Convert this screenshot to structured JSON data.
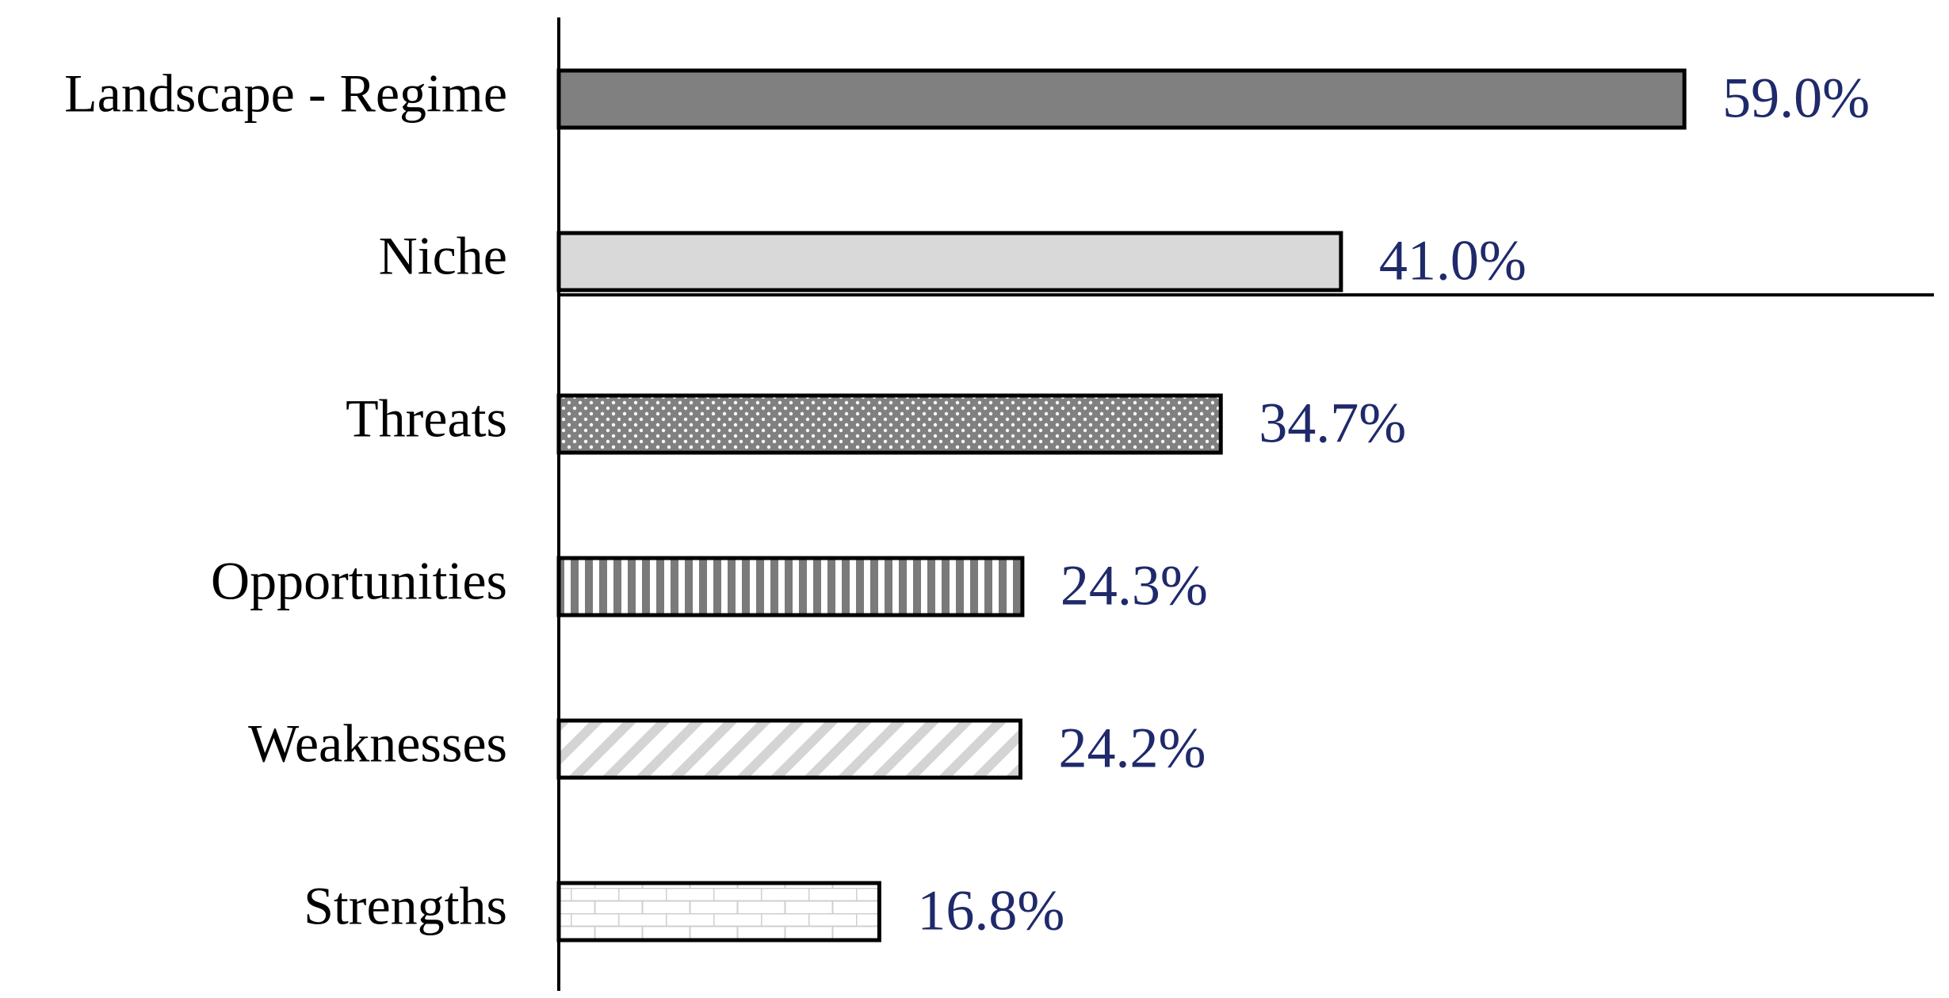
{
  "chart_data": {
    "type": "bar",
    "orientation": "horizontal",
    "categories": [
      "Landscape - Regime",
      "Niche",
      "Threats",
      "Opportunities",
      "Weaknesses",
      "Strengths"
    ],
    "values": [
      59.0,
      41.0,
      34.7,
      24.3,
      24.2,
      16.8
    ],
    "value_labels": [
      "59.0%",
      "41.0%",
      "34.7%",
      "24.3%",
      "24.2%",
      "16.8%"
    ],
    "patterns": [
      "solid-dark-gray",
      "solid-light-gray",
      "dots",
      "vertical-stripes",
      "diagonal-stripes",
      "bricks"
    ],
    "xlim": [
      0,
      100
    ],
    "grid": false,
    "legend": "none",
    "colors": {
      "bar_outline": "#000000",
      "dark_fill": "#808080",
      "light_fill": "#d9d9d9",
      "value_label": "#1f2a6b"
    }
  }
}
